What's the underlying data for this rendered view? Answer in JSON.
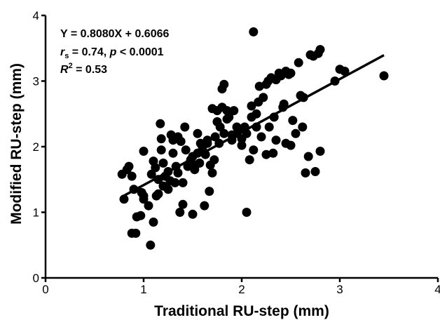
{
  "chart_data": {
    "type": "scatter",
    "xlabel": "Traditional RU-step (mm)",
    "ylabel": "Modified RU-step (mm)",
    "xlim": [
      0,
      4
    ],
    "ylim": [
      0,
      4
    ],
    "x_ticks": [
      "0",
      "1",
      "2",
      "3",
      "4"
    ],
    "y_ticks": [
      "0",
      "1",
      "2",
      "3",
      "4"
    ],
    "grid": false,
    "annotations": {
      "equation": "Y = 0.8080X + 0.6066",
      "rs_symbol": "r",
      "rs_subscript": "s",
      "rs_rest": " = 0.74, ",
      "p_symbol": "p",
      "p_rest": " < 0.0001",
      "r2_symbol": "R",
      "r2_superscript": "2",
      "r2_rest": " = 0.53"
    },
    "regression": {
      "slope": 0.808,
      "intercept": 0.6066,
      "x_range": [
        0.8,
        3.45
      ]
    },
    "series": [
      {
        "points": [
          [
            0.78,
            1.58
          ],
          [
            0.83,
            1.65
          ],
          [
            0.85,
            1.7
          ],
          [
            0.88,
            1.55
          ],
          [
            0.8,
            1.2
          ],
          [
            0.9,
            1.35
          ],
          [
            0.88,
            0.68
          ],
          [
            0.92,
            0.68
          ],
          [
            0.93,
            0.93
          ],
          [
            0.97,
            0.95
          ],
          [
            0.98,
            1.3
          ],
          [
            1.0,
            1.25
          ],
          [
            1.0,
            1.2
          ],
          [
            1.0,
            1.93
          ],
          [
            1.05,
            1.1
          ],
          [
            1.07,
            0.5
          ],
          [
            1.08,
            1.58
          ],
          [
            1.1,
            1.78
          ],
          [
            1.1,
            0.85
          ],
          [
            1.12,
            1.68
          ],
          [
            1.13,
            1.25
          ],
          [
            1.15,
            1.5
          ],
          [
            1.15,
            1.28
          ],
          [
            1.17,
            2.35
          ],
          [
            1.18,
            1.95
          ],
          [
            1.18,
            2.12
          ],
          [
            1.2,
            1.75
          ],
          [
            1.2,
            1.4
          ],
          [
            1.22,
            1.55
          ],
          [
            1.25,
            1.62
          ],
          [
            1.25,
            1.35
          ],
          [
            1.27,
            1.48
          ],
          [
            1.28,
            2.18
          ],
          [
            1.3,
            2.1
          ],
          [
            1.3,
            1.9
          ],
          [
            1.32,
            1.45
          ],
          [
            1.33,
            1.7
          ],
          [
            1.35,
            1.6
          ],
          [
            1.35,
            2.15
          ],
          [
            1.37,
            1.0
          ],
          [
            1.38,
            2.08
          ],
          [
            1.4,
            1.12
          ],
          [
            1.4,
            1.45
          ],
          [
            1.42,
            2.3
          ],
          [
            1.43,
            1.95
          ],
          [
            1.45,
            1.7
          ],
          [
            1.47,
            1.75
          ],
          [
            1.48,
            1.8
          ],
          [
            1.5,
            1.85
          ],
          [
            1.5,
            0.97
          ],
          [
            1.52,
            1.65
          ],
          [
            1.53,
            1.72
          ],
          [
            1.55,
            2.2
          ],
          [
            1.55,
            1.9
          ],
          [
            1.57,
            1.75
          ],
          [
            1.58,
            2.05
          ],
          [
            1.6,
            1.95
          ],
          [
            1.6,
            2.0
          ],
          [
            1.62,
            1.1
          ],
          [
            1.63,
            1.88
          ],
          [
            1.65,
            2.05
          ],
          [
            1.65,
            2.1
          ],
          [
            1.67,
            1.32
          ],
          [
            1.68,
            1.72
          ],
          [
            1.7,
            2.58
          ],
          [
            1.7,
            1.6
          ],
          [
            1.72,
            1.8
          ],
          [
            1.73,
            2.15
          ],
          [
            1.75,
            2.38
          ],
          [
            1.75,
            2.55
          ],
          [
            1.77,
            2.05
          ],
          [
            1.78,
            2.3
          ],
          [
            1.8,
            2.6
          ],
          [
            1.8,
            2.88
          ],
          [
            1.82,
            2.95
          ],
          [
            1.82,
            2.2
          ],
          [
            1.85,
            2.42
          ],
          [
            1.85,
            2.55
          ],
          [
            1.87,
            2.45
          ],
          [
            1.9,
            2.1
          ],
          [
            1.9,
            2.18
          ],
          [
            1.92,
            2.55
          ],
          [
            1.95,
            2.3
          ],
          [
            1.95,
            2.2
          ],
          [
            1.97,
            2.25
          ],
          [
            2.0,
            2.12
          ],
          [
            2.0,
            2.02
          ],
          [
            2.03,
            2.3
          ],
          [
            2.05,
            1.0
          ],
          [
            2.05,
            2.2
          ],
          [
            2.08,
            1.8
          ],
          [
            2.1,
            2.45
          ],
          [
            2.1,
            2.62
          ],
          [
            2.12,
            3.75
          ],
          [
            2.12,
            1.95
          ],
          [
            2.15,
            2.5
          ],
          [
            2.15,
            2.3
          ],
          [
            2.17,
            2.68
          ],
          [
            2.18,
            2.92
          ],
          [
            2.2,
            2.15
          ],
          [
            2.22,
            2.75
          ],
          [
            2.25,
            2.95
          ],
          [
            2.25,
            1.88
          ],
          [
            2.27,
            3.0
          ],
          [
            2.28,
            2.3
          ],
          [
            2.3,
            3.05
          ],
          [
            2.32,
            1.9
          ],
          [
            2.33,
            2.45
          ],
          [
            2.35,
            3.02
          ],
          [
            2.35,
            2.1
          ],
          [
            2.38,
            3.12
          ],
          [
            2.4,
            3.08
          ],
          [
            2.42,
            2.6
          ],
          [
            2.43,
            2.65
          ],
          [
            2.45,
            3.15
          ],
          [
            2.45,
            2.05
          ],
          [
            2.48,
            3.1
          ],
          [
            2.5,
            2.02
          ],
          [
            2.5,
            3.12
          ],
          [
            2.52,
            2.4
          ],
          [
            2.55,
            2.2
          ],
          [
            2.58,
            3.28
          ],
          [
            2.6,
            2.78
          ],
          [
            2.62,
            2.3
          ],
          [
            2.63,
            2.75
          ],
          [
            2.65,
            1.6
          ],
          [
            2.68,
            1.85
          ],
          [
            2.7,
            3.4
          ],
          [
            2.73,
            3.38
          ],
          [
            2.75,
            1.62
          ],
          [
            2.78,
            3.42
          ],
          [
            2.8,
            1.93
          ],
          [
            2.8,
            3.48
          ],
          [
            2.95,
            3.0
          ],
          [
            3.0,
            3.18
          ],
          [
            3.05,
            3.15
          ],
          [
            3.45,
            3.08
          ]
        ]
      }
    ]
  }
}
